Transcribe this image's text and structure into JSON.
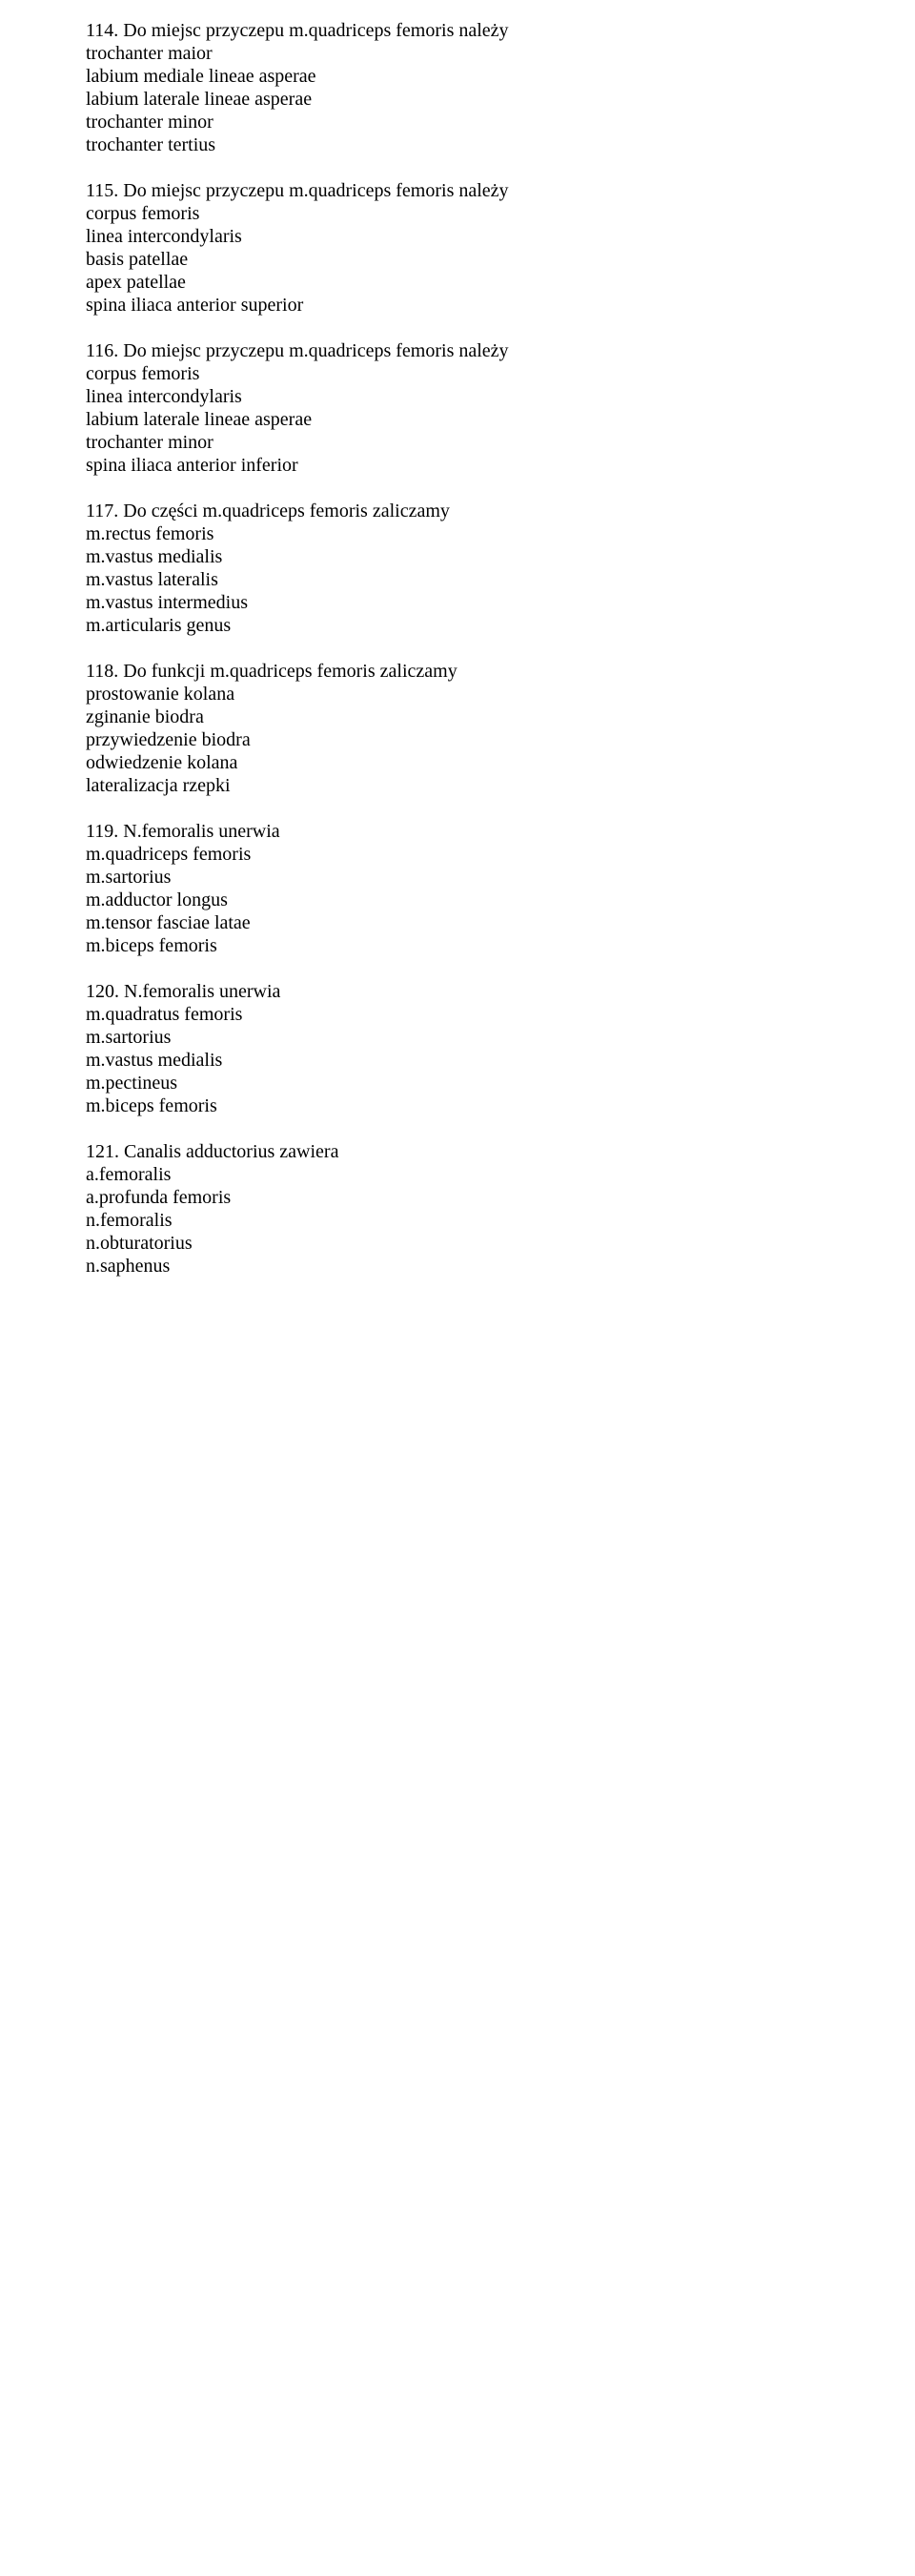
{
  "questions": [
    {
      "title": "114. Do miejsc przyczepu m.quadriceps femoris należy",
      "answers": [
        "trochanter maior",
        "labium mediale lineae asperae",
        "labium laterale lineae asperae",
        "trochanter minor",
        "trochanter tertius"
      ]
    },
    {
      "title": "115. Do miejsc przyczepu m.quadriceps femoris należy",
      "answers": [
        "corpus femoris",
        "linea intercondylaris",
        "basis patellae",
        "apex patellae",
        "spina iliaca anterior superior"
      ]
    },
    {
      "title": "116. Do miejsc przyczepu m.quadriceps femoris należy",
      "answers": [
        "corpus femoris",
        "linea intercondylaris",
        "labium laterale lineae asperae",
        "trochanter minor",
        "spina iliaca anterior inferior"
      ]
    },
    {
      "title": "117. Do części m.quadriceps femoris zaliczamy",
      "answers": [
        "m.rectus femoris",
        "m.vastus medialis",
        "m.vastus lateralis",
        "m.vastus intermedius",
        "m.articularis genus"
      ]
    },
    {
      "title": "118. Do funkcji m.quadriceps femoris zaliczamy",
      "answers": [
        "prostowanie kolana",
        "zginanie biodra",
        "przywiedzenie biodra",
        "odwiedzenie kolana",
        "lateralizacja rzepki"
      ]
    },
    {
      "title": "119. N.femoralis unerwia",
      "answers": [
        "m.quadriceps femoris",
        "m.sartorius",
        "m.adductor longus",
        "m.tensor fasciae latae",
        "m.biceps femoris"
      ]
    },
    {
      "title": "120. N.femoralis unerwia",
      "answers": [
        "m.quadratus femoris",
        "m.sartorius",
        "m.vastus medialis",
        "m.pectineus",
        "m.biceps femoris"
      ]
    },
    {
      "title": "121. Canalis adductorius zawiera",
      "answers": [
        "a.femoralis",
        "a.profunda femoris",
        "n.femoralis",
        "n.obturatorius",
        "n.saphenus"
      ]
    }
  ]
}
